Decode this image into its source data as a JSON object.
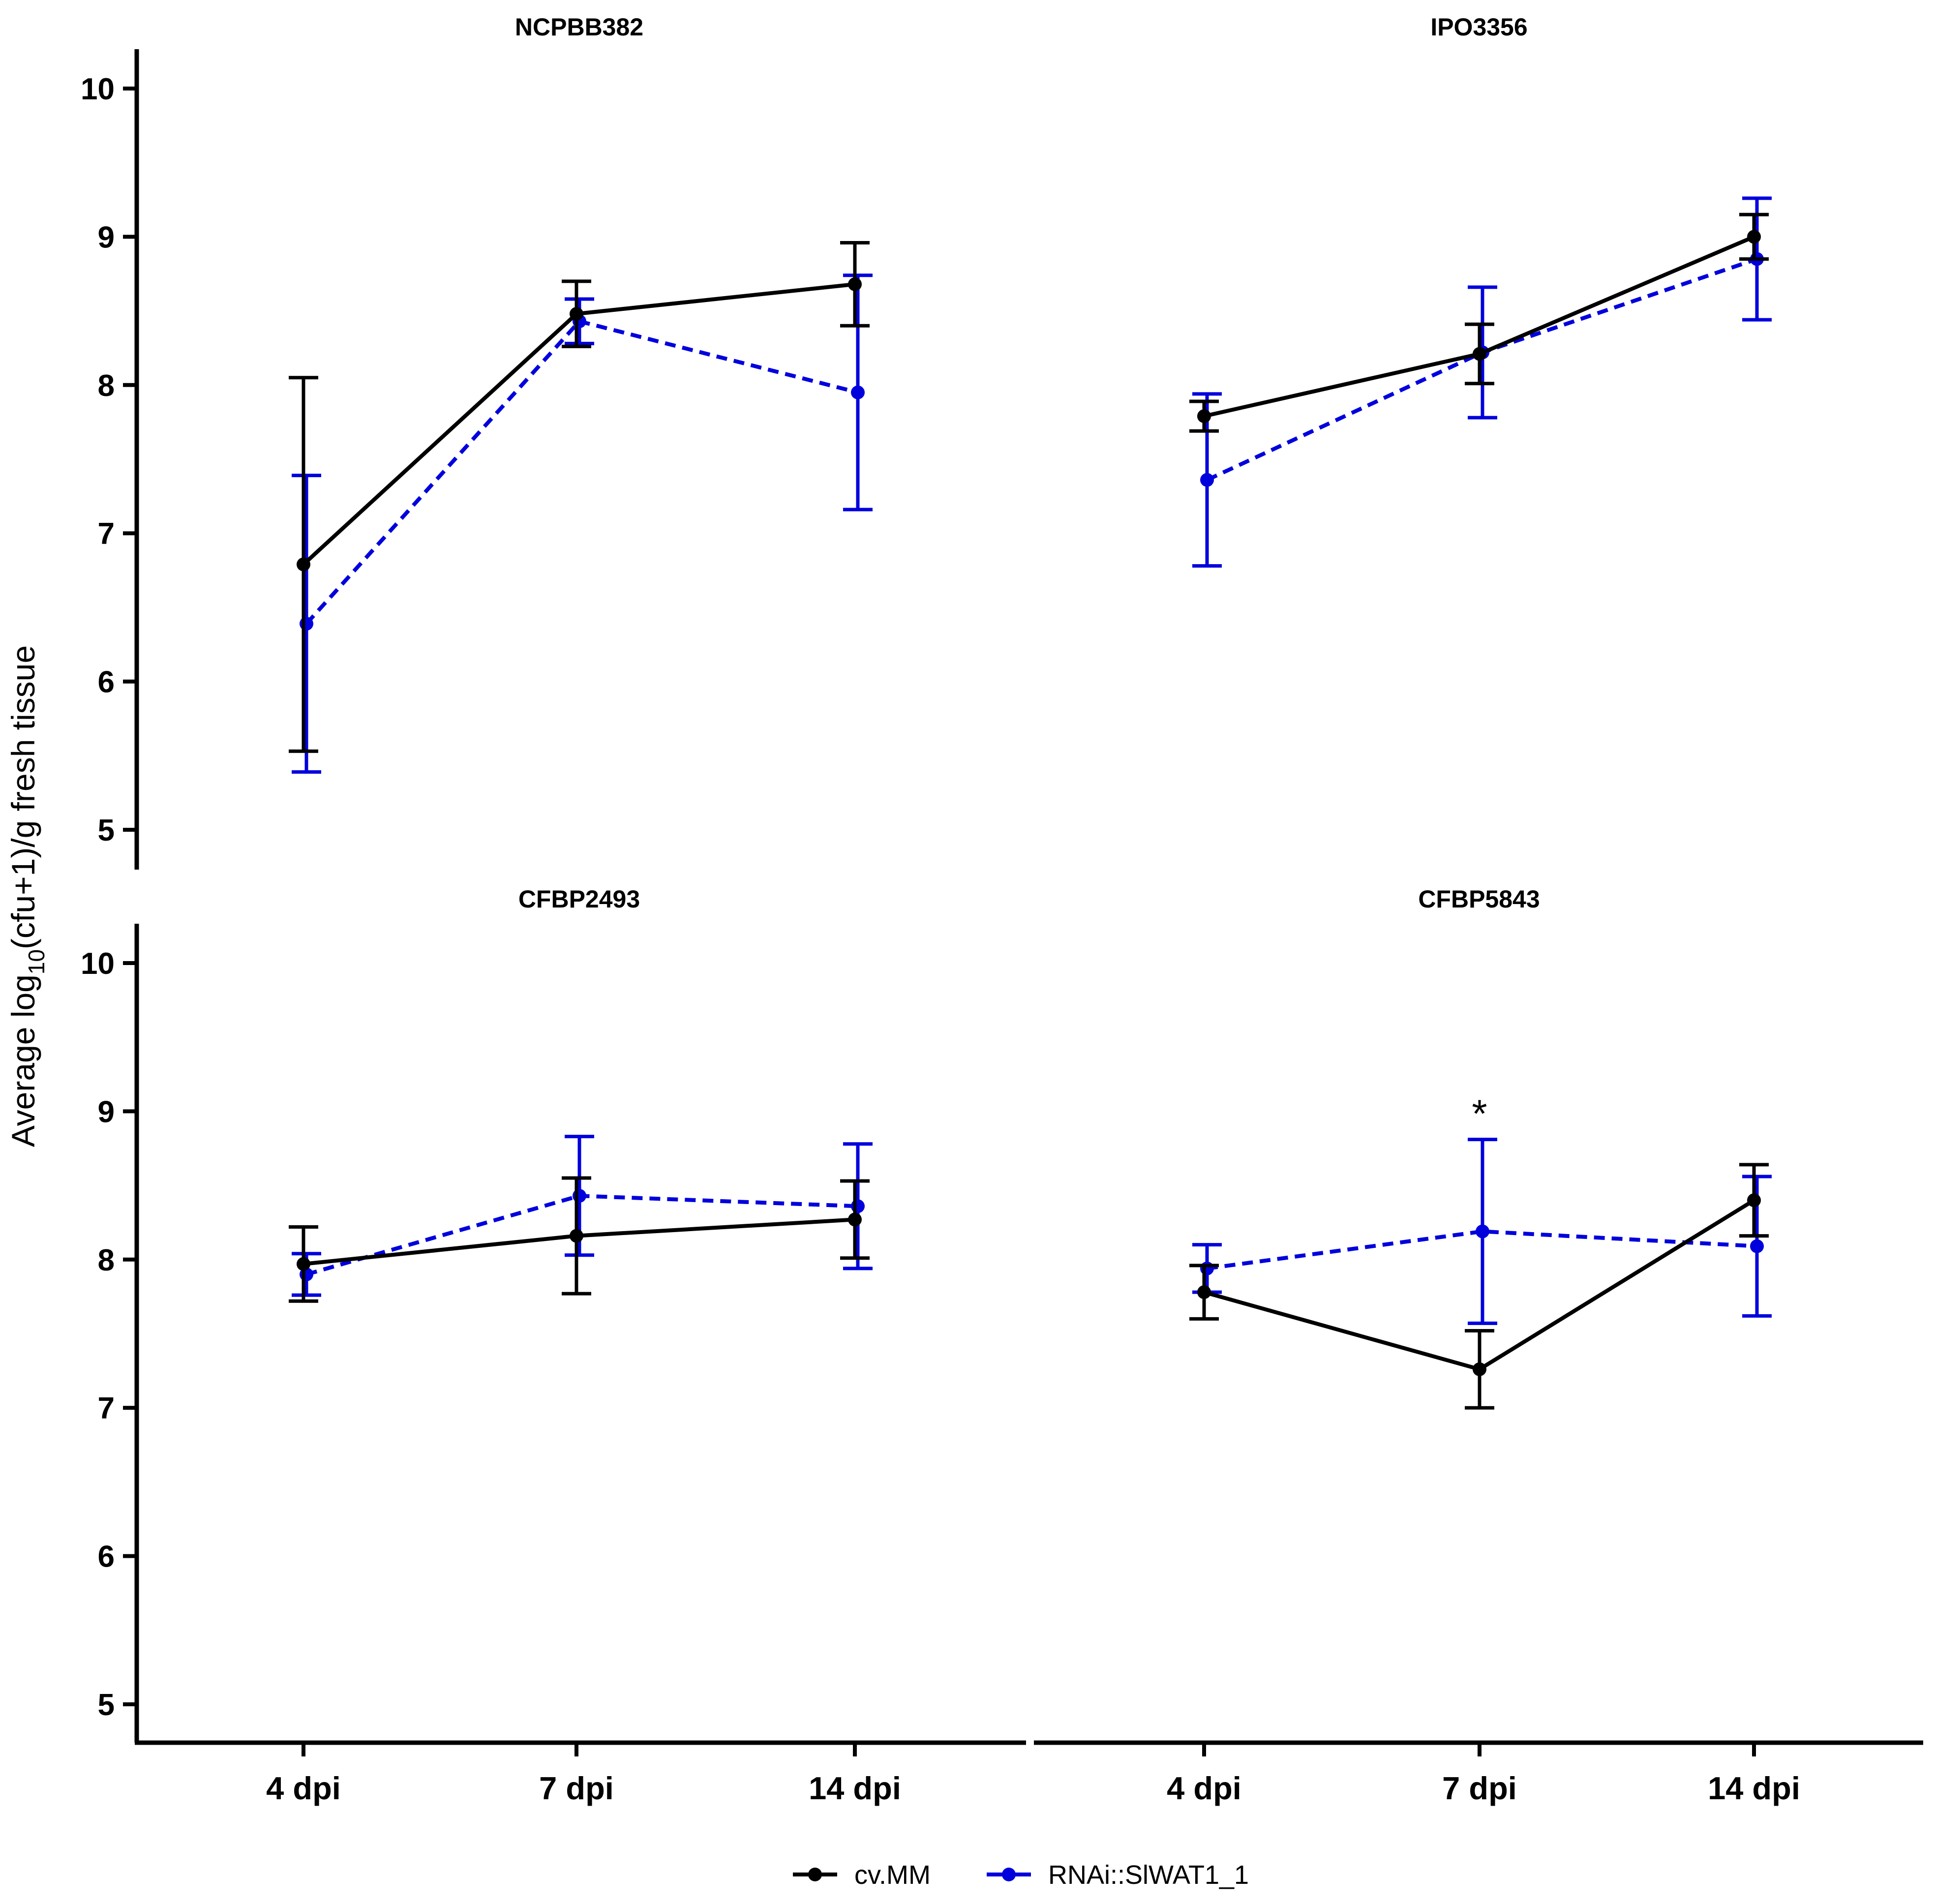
{
  "colors": {
    "cvMM": "#000000",
    "rnai": "#0000DD"
  },
  "chart_data": {
    "type": "line",
    "ylabel": {
      "prefix": "Average log",
      "sub": "10",
      "suffix": "(cfu+1)/g fresh tissue"
    },
    "categories": [
      "4 dpi",
      "7 dpi",
      "14 dpi"
    ],
    "ylim": [
      4.75,
      10.3
    ],
    "yticks": [
      5,
      6,
      7,
      8,
      9,
      10
    ],
    "legend": {
      "position": "bottom-center",
      "entries": [
        {
          "name": "cv.MM",
          "style": "solid",
          "color": "#000000"
        },
        {
          "name": "RNAi::SlWAT1_1",
          "style": "dashed",
          "color": "#0000DD"
        }
      ]
    },
    "panels": [
      {
        "title": "NCPBB382",
        "series": [
          {
            "name": "cv.MM",
            "values": [
              6.79,
              8.48,
              8.68
            ],
            "err": [
              1.26,
              0.22,
              0.28
            ]
          },
          {
            "name": "RNAi::SlWAT1_1",
            "values": [
              6.39,
              8.43,
              7.95
            ],
            "err": [
              1.0,
              0.15,
              0.79
            ]
          }
        ],
        "annotation": ""
      },
      {
        "title": "IPO3356",
        "series": [
          {
            "name": "cv.MM",
            "values": [
              7.79,
              8.21,
              9.0
            ],
            "err": [
              0.1,
              0.2,
              0.15
            ]
          },
          {
            "name": "RNAi::SlWAT1_1",
            "values": [
              7.36,
              8.22,
              8.85
            ],
            "err": [
              0.58,
              0.44,
              0.41
            ]
          }
        ],
        "annotation": ""
      },
      {
        "title": "CFBP2493",
        "series": [
          {
            "name": "cv.MM",
            "values": [
              7.97,
              8.16,
              8.27
            ],
            "err": [
              0.25,
              0.39,
              0.26
            ]
          },
          {
            "name": "RNAi::SlWAT1_1",
            "values": [
              7.9,
              8.43,
              8.36
            ],
            "err": [
              0.14,
              0.4,
              0.42
            ]
          }
        ],
        "annotation": ""
      },
      {
        "title": "CFBP5843",
        "series": [
          {
            "name": "cv.MM",
            "values": [
              7.78,
              7.26,
              8.4
            ],
            "err": [
              0.18,
              0.26,
              0.24
            ]
          },
          {
            "name": "RNAi::SlWAT1_1",
            "values": [
              7.94,
              8.19,
              8.09
            ],
            "err": [
              0.16,
              0.62,
              0.47
            ]
          }
        ],
        "annotation": "*",
        "annotation_category": "7 dpi"
      }
    ]
  }
}
